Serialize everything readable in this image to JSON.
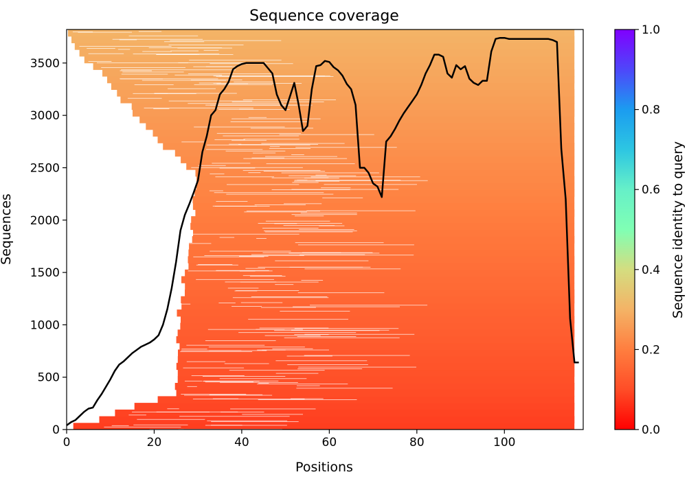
{
  "chart_data": {
    "type": "heatmap",
    "title": "Sequence coverage",
    "xlabel": "Positions",
    "ylabel": "Sequences",
    "xlim": [
      0,
      118
    ],
    "ylim": [
      0,
      3820
    ],
    "x_ticks": [
      0,
      20,
      40,
      60,
      80,
      100
    ],
    "y_ticks": [
      0,
      500,
      1000,
      1500,
      2000,
      2500,
      3000,
      3500
    ],
    "colorbar": {
      "label": "Sequence identity to query",
      "colormap": "rainbow_r",
      "range": [
        0.0,
        1.0
      ],
      "ticks": [
        "0.0",
        "0.2",
        "0.4",
        "0.6",
        "0.8",
        "1.0"
      ]
    },
    "heatmap_fill": {
      "description_values": "sequence identity of aligned residues; rows sorted by identity, lowest at bottom",
      "identity_bottom": 0.08,
      "identity_top": 0.3,
      "row_start_positions": [
        {
          "y": 0,
          "x": 0
        },
        {
          "y": 350,
          "x": 25
        },
        {
          "y": 600,
          "x": 25
        },
        {
          "y": 1200,
          "x": 26
        },
        {
          "y": 1800,
          "x": 28
        },
        {
          "y": 2400,
          "x": 30
        },
        {
          "y": 2900,
          "x": 18
        },
        {
          "y": 3300,
          "x": 10
        },
        {
          "y": 3600,
          "x": 3
        },
        {
          "y": 3820,
          "x": 0
        }
      ],
      "row_end_position": 116
    },
    "coverage_line": {
      "color": "#000000",
      "x": [
        0,
        1,
        2,
        3,
        4,
        5,
        6,
        7,
        8,
        9,
        10,
        11,
        12,
        13,
        14,
        15,
        16,
        17,
        18,
        19,
        20,
        21,
        22,
        23,
        24,
        25,
        26,
        27,
        28,
        29,
        30,
        31,
        32,
        33,
        34,
        35,
        36,
        37,
        38,
        39,
        40,
        41,
        42,
        43,
        44,
        45,
        46,
        47,
        48,
        49,
        50,
        51,
        52,
        53,
        54,
        55,
        56,
        57,
        58,
        59,
        60,
        61,
        62,
        63,
        64,
        65,
        66,
        67,
        68,
        69,
        70,
        71,
        72,
        73,
        74,
        75,
        76,
        77,
        78,
        79,
        80,
        81,
        82,
        83,
        84,
        85,
        86,
        87,
        88,
        89,
        90,
        91,
        92,
        93,
        94,
        95,
        96,
        97,
        98,
        99,
        100,
        101,
        102,
        103,
        104,
        105,
        106,
        107,
        108,
        109,
        110,
        111,
        112,
        113,
        114,
        115,
        116,
        117
      ],
      "y": [
        40,
        70,
        90,
        130,
        170,
        200,
        210,
        280,
        340,
        410,
        480,
        560,
        620,
        650,
        690,
        730,
        760,
        790,
        810,
        830,
        860,
        900,
        1000,
        1150,
        1350,
        1600,
        1900,
        2050,
        2150,
        2260,
        2380,
        2650,
        2800,
        3000,
        3050,
        3200,
        3250,
        3320,
        3440,
        3470,
        3490,
        3500,
        3500,
        3500,
        3500,
        3500,
        3450,
        3400,
        3200,
        3100,
        3050,
        3180,
        3310,
        3100,
        2850,
        2900,
        3250,
        3470,
        3480,
        3520,
        3510,
        3460,
        3430,
        3380,
        3300,
        3250,
        3100,
        2500,
        2500,
        2450,
        2350,
        2320,
        2220,
        2750,
        2800,
        2870,
        2950,
        3020,
        3080,
        3140,
        3200,
        3290,
        3400,
        3480,
        3580,
        3580,
        3560,
        3400,
        3360,
        3480,
        3440,
        3470,
        3350,
        3310,
        3290,
        3330,
        3330,
        3610,
        3730,
        3740,
        3740,
        3730,
        3730,
        3730,
        3730,
        3730,
        3730,
        3730,
        3730,
        3730,
        3730,
        3720,
        3700,
        2680,
        2200,
        1060,
        640,
        640
      ]
    }
  }
}
